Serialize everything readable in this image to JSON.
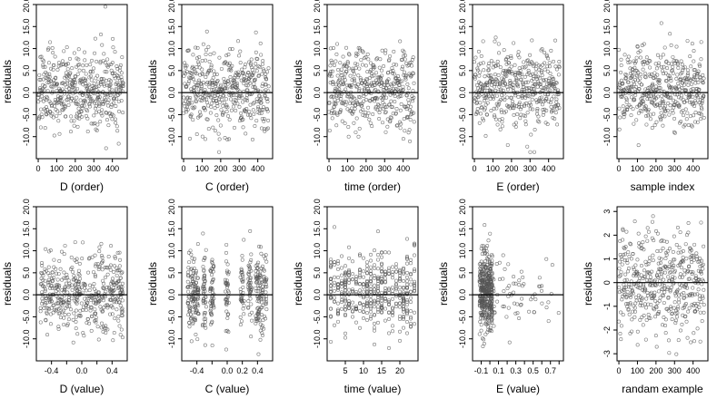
{
  "chart_data": [
    {
      "type": "scatter",
      "xlabel": "D (order)",
      "ylabel": "residuals",
      "xlim": [
        -10,
        480
      ],
      "ylim": [
        -15,
        20
      ],
      "xticks": [
        0,
        100,
        200,
        300,
        400
      ],
      "yticks": [
        -10,
        -5,
        0,
        5,
        10,
        15,
        20
      ],
      "hline": 0,
      "x_kind": "index",
      "y_kind": "resid",
      "seed": 11
    },
    {
      "type": "scatter",
      "xlabel": "C (order)",
      "ylabel": "residuals",
      "xlim": [
        -10,
        480
      ],
      "ylim": [
        -15,
        20
      ],
      "xticks": [
        0,
        100,
        200,
        300,
        400
      ],
      "yticks": [
        -10,
        -5,
        0,
        5,
        10,
        15,
        20
      ],
      "hline": 0,
      "x_kind": "index",
      "y_kind": "resid",
      "seed": 23
    },
    {
      "type": "scatter",
      "xlabel": "time (order)",
      "ylabel": "residuals",
      "xlim": [
        -10,
        480
      ],
      "ylim": [
        -15,
        20
      ],
      "xticks": [
        0,
        100,
        200,
        300,
        400
      ],
      "yticks": [
        -10,
        -5,
        0,
        5,
        10,
        15,
        20
      ],
      "hline": 0,
      "x_kind": "index",
      "y_kind": "resid",
      "seed": 37
    },
    {
      "type": "scatter",
      "xlabel": "E (order)",
      "ylabel": "residuals",
      "xlim": [
        -10,
        480
      ],
      "ylim": [
        -15,
        20
      ],
      "xticks": [
        0,
        100,
        200,
        300,
        400
      ],
      "yticks": [
        -10,
        -5,
        0,
        5,
        10,
        15,
        20
      ],
      "hline": 0,
      "x_kind": "index",
      "y_kind": "resid",
      "seed": 41
    },
    {
      "type": "scatter",
      "xlabel": "sample index",
      "ylabel": "residuals",
      "xlim": [
        -10,
        480
      ],
      "ylim": [
        -15,
        20
      ],
      "xticks": [
        0,
        100,
        200,
        300,
        400
      ],
      "yticks": [
        -10,
        -5,
        0,
        5,
        10,
        15,
        20
      ],
      "hline": 0,
      "x_kind": "index",
      "y_kind": "resid",
      "seed": 53
    },
    {
      "type": "scatter",
      "xlabel": "D (value)",
      "ylabel": "residuals",
      "xlim": [
        -0.6,
        0.6
      ],
      "ylim": [
        -15,
        20
      ],
      "xticks": [
        -0.4,
        -0.2,
        0.0,
        0.2,
        0.4
      ],
      "xtick_labels": [
        "-0.4",
        "",
        "0.0",
        "",
        "0.4"
      ],
      "yticks": [
        -10,
        -5,
        0,
        5,
        10,
        15,
        20
      ],
      "hline": 0,
      "x_kind": "D",
      "y_kind": "resid",
      "seed": 61
    },
    {
      "type": "scatter",
      "xlabel": "C (value)",
      "ylabel": "residuals",
      "xlim": [
        -0.6,
        0.6
      ],
      "ylim": [
        -15,
        20
      ],
      "xticks": [
        -0.4,
        -0.2,
        0.0,
        0.2,
        0.4
      ],
      "xtick_labels": [
        "-0.4",
        "",
        "0.0",
        "0.2",
        "0.4"
      ],
      "yticks": [
        -10,
        -5,
        0,
        5,
        10,
        15,
        20
      ],
      "hline": 0,
      "x_kind": "C",
      "y_kind": "resid",
      "seed": 73
    },
    {
      "type": "scatter",
      "xlabel": "time (value)",
      "ylabel": "residuals",
      "xlim": [
        0,
        25
      ],
      "ylim": [
        -15,
        20
      ],
      "xticks": [
        5,
        10,
        15,
        20
      ],
      "yticks": [
        -10,
        -5,
        0,
        5,
        10,
        15,
        20
      ],
      "hline": 0,
      "x_kind": "time",
      "y_kind": "resid",
      "seed": 89
    },
    {
      "type": "scatter",
      "xlabel": "E (value)",
      "ylabel": "residuals",
      "xlim": [
        -0.2,
        0.85
      ],
      "ylim": [
        -15,
        20
      ],
      "xticks": [
        -0.1,
        0.0,
        0.1,
        0.2,
        0.3,
        0.4,
        0.5,
        0.6,
        0.7,
        0.8
      ],
      "xtick_labels": [
        "-0.1",
        "",
        "0.1",
        "",
        "0.3",
        "",
        "0.5",
        "",
        "0.7",
        ""
      ],
      "yticks": [
        -10,
        -5,
        0,
        5,
        10,
        15,
        20
      ],
      "hline": 0,
      "x_kind": "E",
      "y_kind": "resid",
      "seed": 97
    },
    {
      "type": "scatter",
      "xlabel": "randam example",
      "ylabel": "residuals",
      "xlim": [
        -10,
        480
      ],
      "ylim": [
        -3.3,
        3.2
      ],
      "xticks": [
        0,
        100,
        200,
        300,
        400
      ],
      "yticks": [
        -3,
        -2,
        -1,
        0,
        1,
        2,
        3
      ],
      "hline": 0,
      "x_kind": "index",
      "y_kind": "normal",
      "seed": 101
    }
  ]
}
